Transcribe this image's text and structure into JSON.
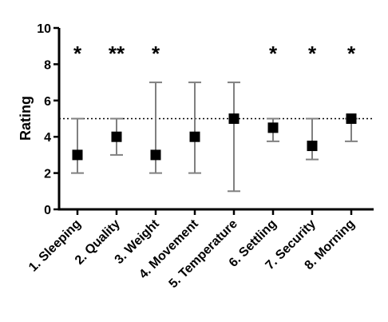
{
  "chart_data": {
    "type": "scatter",
    "title": "",
    "xlabel": "",
    "ylabel": "Rating",
    "ylim": [
      0,
      10
    ],
    "yticks": [
      0,
      2,
      4,
      6,
      8,
      10
    ],
    "reference_line": {
      "y": 5,
      "style": "dotted"
    },
    "categories": [
      "1. Sleeping",
      "2. Quality",
      "3. Weight",
      "4. Movement",
      "5. Temperature",
      "6. Settling",
      "7. Security",
      "8. Morning"
    ],
    "values": [
      3,
      4,
      3,
      4,
      5,
      4.5,
      3.5,
      5
    ],
    "error_low": [
      2,
      3,
      2,
      2,
      1,
      3.75,
      2.75,
      3.75
    ],
    "error_high": [
      5,
      5,
      7,
      7,
      7,
      5,
      5,
      5
    ],
    "significance": [
      "*",
      "**",
      "*",
      "",
      "",
      "*",
      "*",
      "*"
    ],
    "colors": {
      "marker": "#000000",
      "error_bar": "#808080",
      "axis": "#000000"
    }
  }
}
